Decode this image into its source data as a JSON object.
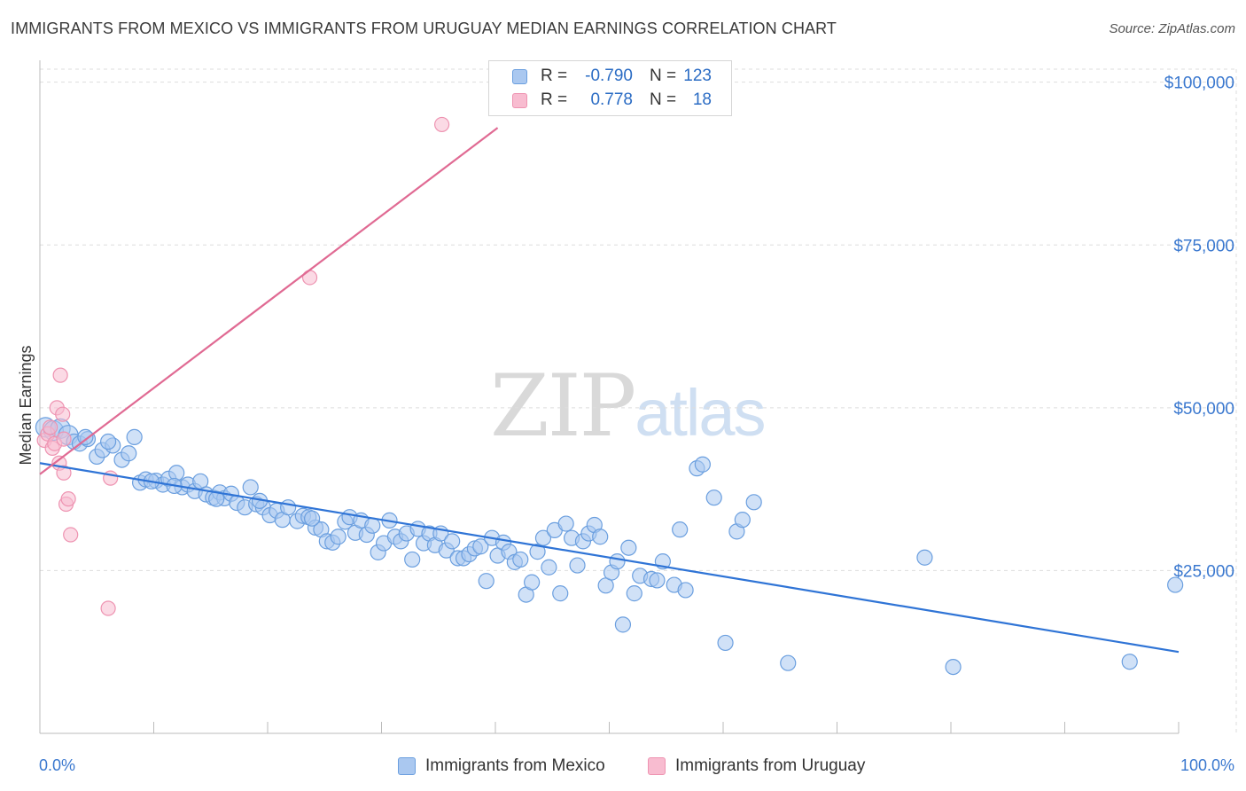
{
  "title": "IMMIGRANTS FROM MEXICO VS IMMIGRANTS FROM URUGUAY MEDIAN EARNINGS CORRELATION CHART",
  "source": "Source: ZipAtlas.com",
  "watermark": {
    "zip": "ZIP",
    "atlas": "atlas"
  },
  "colors": {
    "mexico_fill": "#aac8f0",
    "mexico_stroke": "#6b9fdf",
    "mexico_line": "#2f74d6",
    "uruguay_fill": "#f8bcd0",
    "uruguay_stroke": "#ee93b1",
    "uruguay_line": "#e06a93",
    "axis_label": "#3a78cf",
    "grid": "#dddddd"
  },
  "stats": [
    {
      "r_label": "R =",
      "r_value": "-0.790",
      "n_label": "N =",
      "n_value": "123"
    },
    {
      "r_label": "R =",
      "r_value": "0.778",
      "n_label": "N =",
      "n_value": "18"
    }
  ],
  "legend": [
    "Immigrants from Mexico",
    "Immigrants from Uruguay"
  ],
  "chart_data": {
    "type": "scatter",
    "title": "IMMIGRANTS FROM MEXICO VS IMMIGRANTS FROM URUGUAY MEDIAN EARNINGS CORRELATION CHART",
    "xlabel": "",
    "ylabel": "Median Earnings",
    "x_tick_labels": [
      "0.0%",
      "100.0%"
    ],
    "y_tick_labels": [
      "$25,000",
      "$50,000",
      "$75,000",
      "$100,000"
    ],
    "y_ticks": [
      25000,
      50000,
      75000,
      100000
    ],
    "xlim": [
      0,
      100
    ],
    "ylim": [
      0,
      102000
    ],
    "grid": true,
    "legend_position": "bottom",
    "series": [
      {
        "name": "Immigrants from Mexico",
        "trend": {
          "x": [
            0,
            100
          ],
          "y": [
            41500,
            12500
          ]
        },
        "points": [
          [
            0.5,
            47000
          ],
          [
            1.2,
            46500
          ],
          [
            1.8,
            46800
          ],
          [
            2.5,
            45800
          ],
          [
            3.0,
            44800
          ],
          [
            3.5,
            44500
          ],
          [
            4.2,
            45200
          ],
          [
            5.0,
            42500
          ],
          [
            5.5,
            43500
          ],
          [
            6.4,
            44200
          ],
          [
            7.2,
            42000
          ],
          [
            7.8,
            43000
          ],
          [
            8.3,
            45500
          ],
          [
            8.8,
            38500
          ],
          [
            9.3,
            39000
          ],
          [
            10.2,
            38800
          ],
          [
            10.8,
            38200
          ],
          [
            11.3,
            39100
          ],
          [
            12.0,
            40000
          ],
          [
            12.5,
            37800
          ],
          [
            13.0,
            38200
          ],
          [
            13.6,
            37200
          ],
          [
            14.1,
            38700
          ],
          [
            14.6,
            36700
          ],
          [
            15.2,
            36200
          ],
          [
            15.8,
            37000
          ],
          [
            16.2,
            36100
          ],
          [
            16.8,
            36800
          ],
          [
            17.3,
            35400
          ],
          [
            18.0,
            34700
          ],
          [
            18.5,
            37800
          ],
          [
            19.0,
            35200
          ],
          [
            19.6,
            34700
          ],
          [
            20.2,
            33500
          ],
          [
            20.8,
            34200
          ],
          [
            21.3,
            32800
          ],
          [
            21.8,
            34700
          ],
          [
            22.6,
            32600
          ],
          [
            23.1,
            33400
          ],
          [
            23.6,
            33200
          ],
          [
            24.2,
            31600
          ],
          [
            24.7,
            31300
          ],
          [
            25.2,
            29500
          ],
          [
            25.7,
            29300
          ],
          [
            26.2,
            30200
          ],
          [
            26.8,
            32500
          ],
          [
            27.2,
            33200
          ],
          [
            27.7,
            30800
          ],
          [
            28.2,
            32700
          ],
          [
            28.7,
            30500
          ],
          [
            29.2,
            31900
          ],
          [
            29.7,
            27800
          ],
          [
            30.2,
            29200
          ],
          [
            30.7,
            32700
          ],
          [
            31.2,
            30200
          ],
          [
            31.7,
            29500
          ],
          [
            32.2,
            30700
          ],
          [
            32.7,
            26700
          ],
          [
            33.2,
            31400
          ],
          [
            33.7,
            29200
          ],
          [
            34.2,
            30700
          ],
          [
            34.7,
            28900
          ],
          [
            35.2,
            30700
          ],
          [
            35.7,
            28100
          ],
          [
            36.2,
            29500
          ],
          [
            36.7,
            26900
          ],
          [
            37.2,
            26900
          ],
          [
            37.7,
            27500
          ],
          [
            38.2,
            28400
          ],
          [
            38.7,
            28700
          ],
          [
            39.2,
            23400
          ],
          [
            39.7,
            30000
          ],
          [
            40.2,
            27300
          ],
          [
            40.7,
            29300
          ],
          [
            41.2,
            27900
          ],
          [
            41.7,
            26300
          ],
          [
            42.2,
            26700
          ],
          [
            42.7,
            21300
          ],
          [
            43.2,
            23200
          ],
          [
            43.7,
            27900
          ],
          [
            44.2,
            30000
          ],
          [
            44.7,
            25500
          ],
          [
            45.2,
            31200
          ],
          [
            45.7,
            21500
          ],
          [
            46.2,
            32200
          ],
          [
            46.7,
            30000
          ],
          [
            47.2,
            25800
          ],
          [
            47.7,
            29500
          ],
          [
            48.2,
            30700
          ],
          [
            48.7,
            32000
          ],
          [
            49.2,
            30200
          ],
          [
            49.7,
            22700
          ],
          [
            50.2,
            24700
          ],
          [
            50.7,
            26400
          ],
          [
            51.2,
            16700
          ],
          [
            51.7,
            28500
          ],
          [
            52.2,
            21500
          ],
          [
            52.7,
            24200
          ],
          [
            53.7,
            23700
          ],
          [
            54.2,
            23500
          ],
          [
            54.7,
            26400
          ],
          [
            55.7,
            22800
          ],
          [
            56.2,
            31300
          ],
          [
            56.7,
            22000
          ],
          [
            57.7,
            40700
          ],
          [
            58.2,
            41300
          ],
          [
            59.2,
            36200
          ],
          [
            60.2,
            13900
          ],
          [
            61.2,
            31000
          ],
          [
            61.7,
            32800
          ],
          [
            62.7,
            35500
          ],
          [
            65.7,
            10800
          ],
          [
            77.7,
            27000
          ],
          [
            80.2,
            10200
          ],
          [
            95.7,
            11000
          ],
          [
            99.7,
            22800
          ],
          [
            4.0,
            45500
          ],
          [
            6.0,
            44800
          ],
          [
            9.8,
            38700
          ],
          [
            11.8,
            38000
          ],
          [
            15.5,
            36000
          ],
          [
            19.3,
            35700
          ],
          [
            23.9,
            33000
          ]
        ]
      },
      {
        "name": "Immigrants from Uruguay",
        "trend": {
          "x": [
            0,
            40.2
          ],
          "y": [
            39800,
            93000
          ]
        },
        "points": [
          [
            0.4,
            45000
          ],
          [
            0.7,
            46000
          ],
          [
            0.9,
            47000
          ],
          [
            1.1,
            43800
          ],
          [
            1.3,
            44500
          ],
          [
            1.5,
            50000
          ],
          [
            1.7,
            41500
          ],
          [
            1.8,
            55000
          ],
          [
            2.0,
            49000
          ],
          [
            2.1,
            40000
          ],
          [
            2.1,
            45200
          ],
          [
            2.3,
            35200
          ],
          [
            2.5,
            36000
          ],
          [
            2.7,
            30500
          ],
          [
            6.0,
            19200
          ],
          [
            6.2,
            39200
          ],
          [
            23.7,
            70000
          ],
          [
            35.3,
            93500
          ]
        ]
      }
    ]
  }
}
